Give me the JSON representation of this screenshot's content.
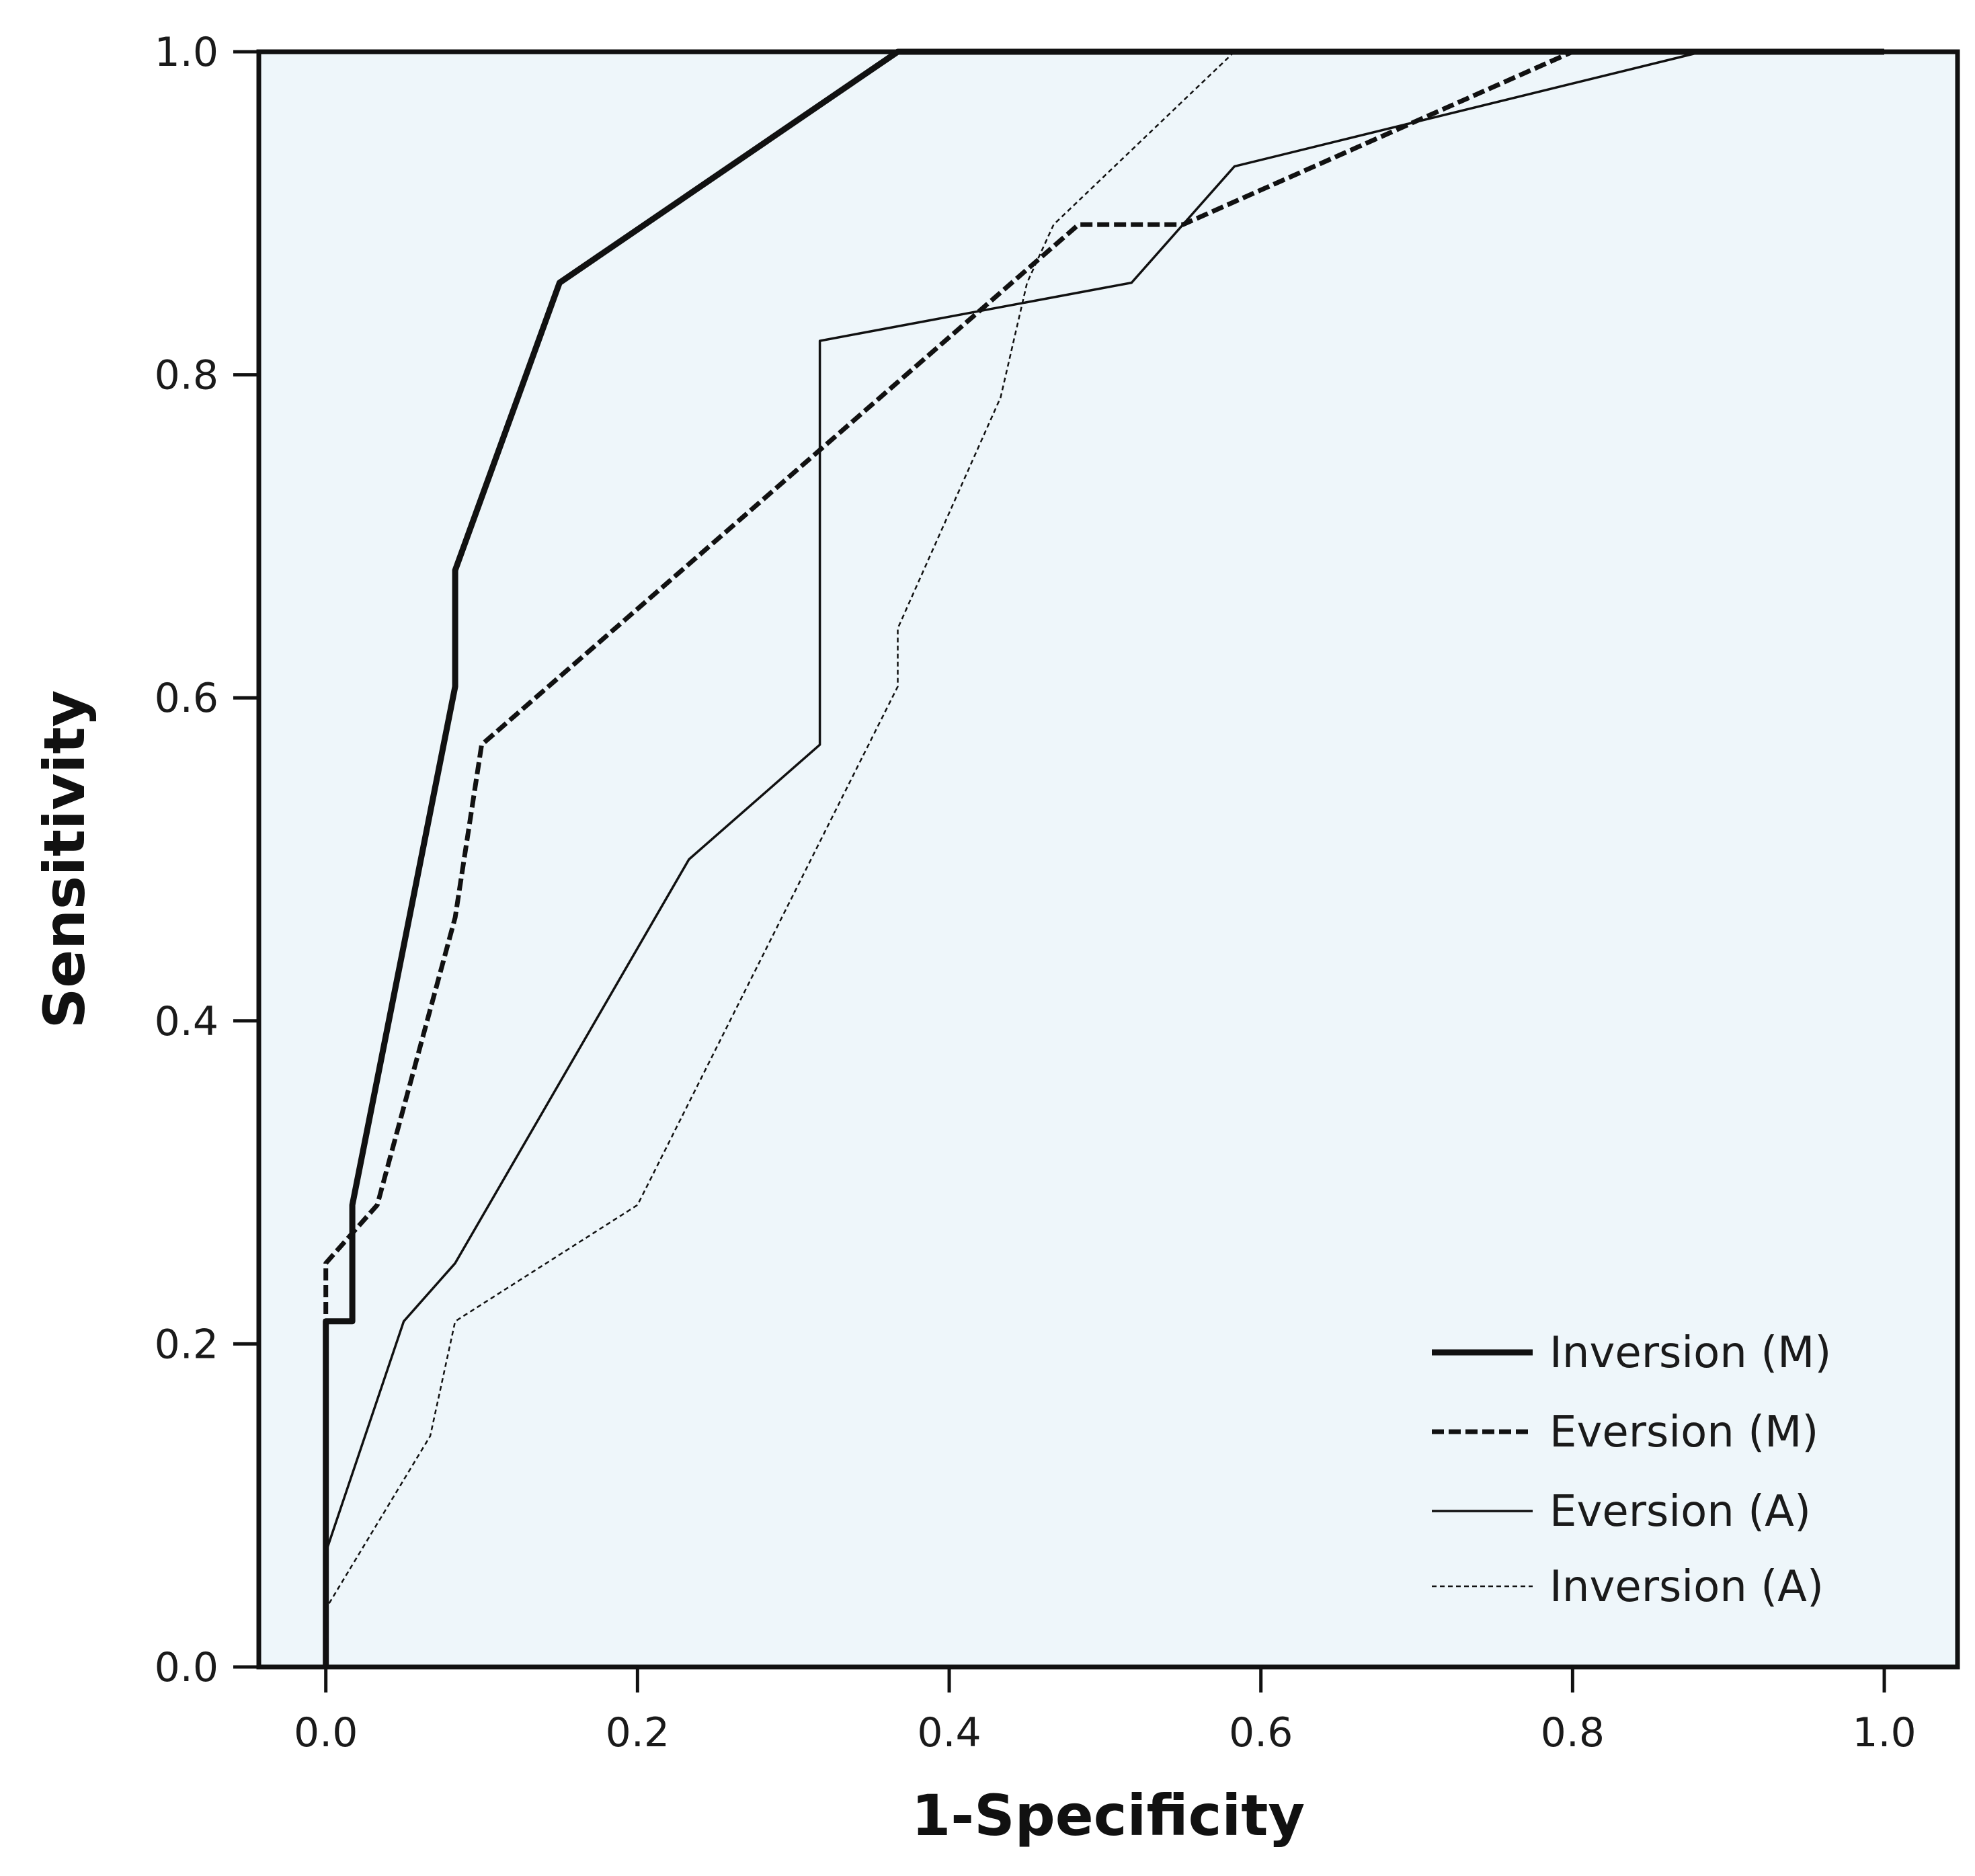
{
  "chart_data": {
    "type": "line",
    "title": "",
    "xlabel": "1-Specificity",
    "ylabel": "Sensitivity",
    "xlim": [
      -0.043,
      1.047
    ],
    "ylim": [
      0.0,
      1.0
    ],
    "xticks": [
      0.0,
      0.2,
      0.4,
      0.6,
      0.8,
      1.0
    ],
    "yticks": [
      0.0,
      0.2,
      0.4,
      0.6,
      0.8,
      1.0
    ],
    "xtick_labels": [
      "0.0",
      "0.2",
      "0.4",
      "0.6",
      "0.8",
      "1.0"
    ],
    "ytick_labels": [
      "0.0",
      "0.2",
      "0.4",
      "0.6",
      "0.8",
      "1.0"
    ],
    "grid": false,
    "legend_position": "bottom-right",
    "colors": {
      "plot_bg": "#eef6fa",
      "axes": "#111111",
      "line": "#111111"
    },
    "series": [
      {
        "name": "Inversion (M)",
        "style": "thick-solid",
        "points": [
          [
            0.0,
            0.0
          ],
          [
            0.0,
            0.214
          ],
          [
            0.017,
            0.214
          ],
          [
            0.017,
            0.286
          ],
          [
            0.083,
            0.607
          ],
          [
            0.083,
            0.679
          ],
          [
            0.15,
            0.857
          ],
          [
            0.367,
            1.0
          ],
          [
            1.0,
            1.0
          ]
        ]
      },
      {
        "name": "Eversion (M)",
        "style": "thick-dashed",
        "points": [
          [
            0.0,
            0.0
          ],
          [
            0.0,
            0.25
          ],
          [
            0.033,
            0.286
          ],
          [
            0.083,
            0.464
          ],
          [
            0.1,
            0.571
          ],
          [
            0.483,
            0.893
          ],
          [
            0.55,
            0.893
          ],
          [
            0.8,
            1.0
          ],
          [
            1.0,
            1.0
          ]
        ]
      },
      {
        "name": "Eversion (A)",
        "style": "thin-solid",
        "points": [
          [
            0.0,
            0.0
          ],
          [
            0.0,
            0.071
          ],
          [
            0.05,
            0.214
          ],
          [
            0.083,
            0.25
          ],
          [
            0.233,
            0.5
          ],
          [
            0.317,
            0.571
          ],
          [
            0.317,
            0.821
          ],
          [
            0.517,
            0.857
          ],
          [
            0.583,
            0.929
          ],
          [
            0.883,
            1.0
          ],
          [
            1.0,
            1.0
          ]
        ]
      },
      {
        "name": "Inversion (A)",
        "style": "thin-dotted",
        "points": [
          [
            0.0,
            0.0
          ],
          [
            0.0,
            0.036
          ],
          [
            0.067,
            0.143
          ],
          [
            0.083,
            0.214
          ],
          [
            0.2,
            0.286
          ],
          [
            0.367,
            0.607
          ],
          [
            0.367,
            0.643
          ],
          [
            0.433,
            0.786
          ],
          [
            0.45,
            0.857
          ],
          [
            0.467,
            0.893
          ],
          [
            0.583,
            1.0
          ],
          [
            1.0,
            1.0
          ]
        ]
      }
    ]
  }
}
